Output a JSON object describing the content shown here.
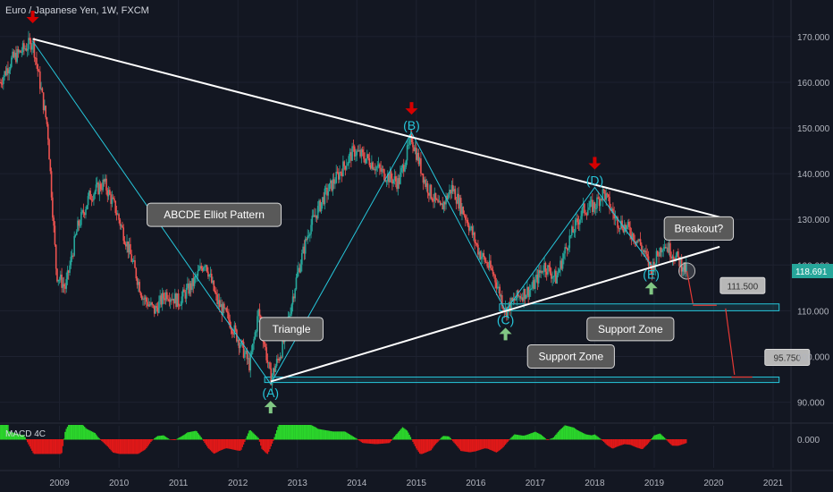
{
  "header": {
    "title": "Euro / Japanese Yen, 1W, FXCM"
  },
  "macd": {
    "label": "MACD 4C",
    "zero_label": "0.000"
  },
  "price_badge": "118.691",
  "chart_data": {
    "type": "line",
    "title": "Euro / Japanese Yen, 1W, FXCM",
    "xlabel": "",
    "ylabel": "",
    "ylim": [
      86,
      178
    ],
    "xlim": [
      2008.0,
      2021.3
    ],
    "x_ticks": [
      "2009",
      "2010",
      "2011",
      "2012",
      "2013",
      "2014",
      "2015",
      "2016",
      "2017",
      "2018",
      "2019",
      "2020",
      "2021"
    ],
    "y_ticks": [
      "90.000",
      "100.000",
      "110.000",
      "120.000",
      "130.000",
      "140.000",
      "150.000",
      "160.000",
      "170.000"
    ],
    "price_path": {
      "x": [
        2008.0,
        2008.2,
        2008.55,
        2008.8,
        2008.95,
        2009.1,
        2009.3,
        2009.5,
        2009.75,
        2009.95,
        2010.15,
        2010.4,
        2010.6,
        2010.8,
        2011.0,
        2011.25,
        2011.45,
        2011.65,
        2011.85,
        2012.0,
        2012.2,
        2012.35,
        2012.55,
        2012.75,
        2013.0,
        2013.2,
        2013.45,
        2013.7,
        2013.95,
        2014.2,
        2014.45,
        2014.7,
        2014.92,
        2015.15,
        2015.4,
        2015.6,
        2015.85,
        2016.05,
        2016.3,
        2016.5,
        2016.7,
        2016.95,
        2017.15,
        2017.35,
        2017.55,
        2017.8,
        2018.0,
        2018.15,
        2018.35,
        2018.55,
        2018.75,
        2018.95,
        2019.15,
        2019.35,
        2019.55
      ],
      "y": [
        160,
        165,
        169,
        150,
        118,
        115,
        128,
        135,
        138,
        132,
        124,
        113,
        110,
        114,
        112,
        116,
        121,
        112,
        108,
        104,
        98,
        110,
        95,
        102,
        118,
        128,
        135,
        140,
        145,
        143,
        140,
        138,
        148,
        138,
        132,
        137,
        130,
        123,
        118,
        110,
        113,
        115,
        120,
        117,
        125,
        132,
        133,
        136,
        130,
        128,
        125,
        119,
        125,
        122,
        118.7
      ]
    },
    "wave_labels": [
      {
        "label": "(A)",
        "x": 2012.55,
        "y": 94
      },
      {
        "label": "(B)",
        "x": 2014.92,
        "y": 149
      },
      {
        "label": "(C)",
        "x": 2016.5,
        "y": 110
      },
      {
        "label": "(D)",
        "x": 2018.0,
        "y": 137
      },
      {
        "label": "(E)",
        "x": 2018.95,
        "y": 120
      }
    ],
    "wave_path": {
      "x": [
        2008.55,
        2012.55,
        2014.92,
        2016.5,
        2018.0,
        2018.95
      ],
      "y": [
        169,
        94,
        149,
        110,
        137,
        120
      ]
    },
    "trendlines": [
      {
        "name": "upper",
        "x": [
          2008.55,
          2020.1
        ],
        "y": [
          169.5,
          130.5
        ]
      },
      {
        "name": "lower",
        "x": [
          2012.55,
          2020.1
        ],
        "y": [
          94.5,
          124
        ]
      }
    ],
    "support_zones": [
      {
        "y_low": 110,
        "y_high": 111.5,
        "x_start": 2016.4,
        "x_end": 2021.1
      },
      {
        "y_low": 94.3,
        "y_high": 95.5,
        "x_start": 2012.45,
        "x_end": 2021.1
      }
    ],
    "targets": [
      {
        "value": "111.500",
        "x": 2019.75,
        "y": 111.2
      },
      {
        "value": "95.750",
        "x": 2020.5,
        "y": 95.5
      }
    ],
    "annotations": [
      {
        "text": "ABCDE Elliot Pattern",
        "x": 2011.6,
        "y": 131
      },
      {
        "text": "Triangle",
        "x": 2012.9,
        "y": 106
      },
      {
        "text": "Support Zone",
        "x": 2017.6,
        "y": 100
      },
      {
        "text": "Support Zone",
        "x": 2018.6,
        "y": 106
      },
      {
        "text": "Breakout?",
        "x": 2019.75,
        "y": 128
      }
    ],
    "sell_arrows": [
      {
        "x": 2008.55,
        "y": 169
      },
      {
        "x": 2014.92,
        "y": 149
      },
      {
        "x": 2018.0,
        "y": 137
      }
    ],
    "buy_arrows": [
      {
        "x": 2012.55,
        "y": 94
      },
      {
        "x": 2016.5,
        "y": 110
      },
      {
        "x": 2018.95,
        "y": 120
      }
    ],
    "last_price": 118.691,
    "colors": {
      "background": "#131722",
      "up": "#26a69a",
      "down": "#ef5350",
      "wave": "#26c6da",
      "trend": "#ffffff",
      "sell_arrow": "#d50000",
      "buy_arrow": "#81c784",
      "badge": "#26a69a",
      "macd_pos": "#2bd62b",
      "macd_neg": "#e01818"
    },
    "grid": true
  }
}
